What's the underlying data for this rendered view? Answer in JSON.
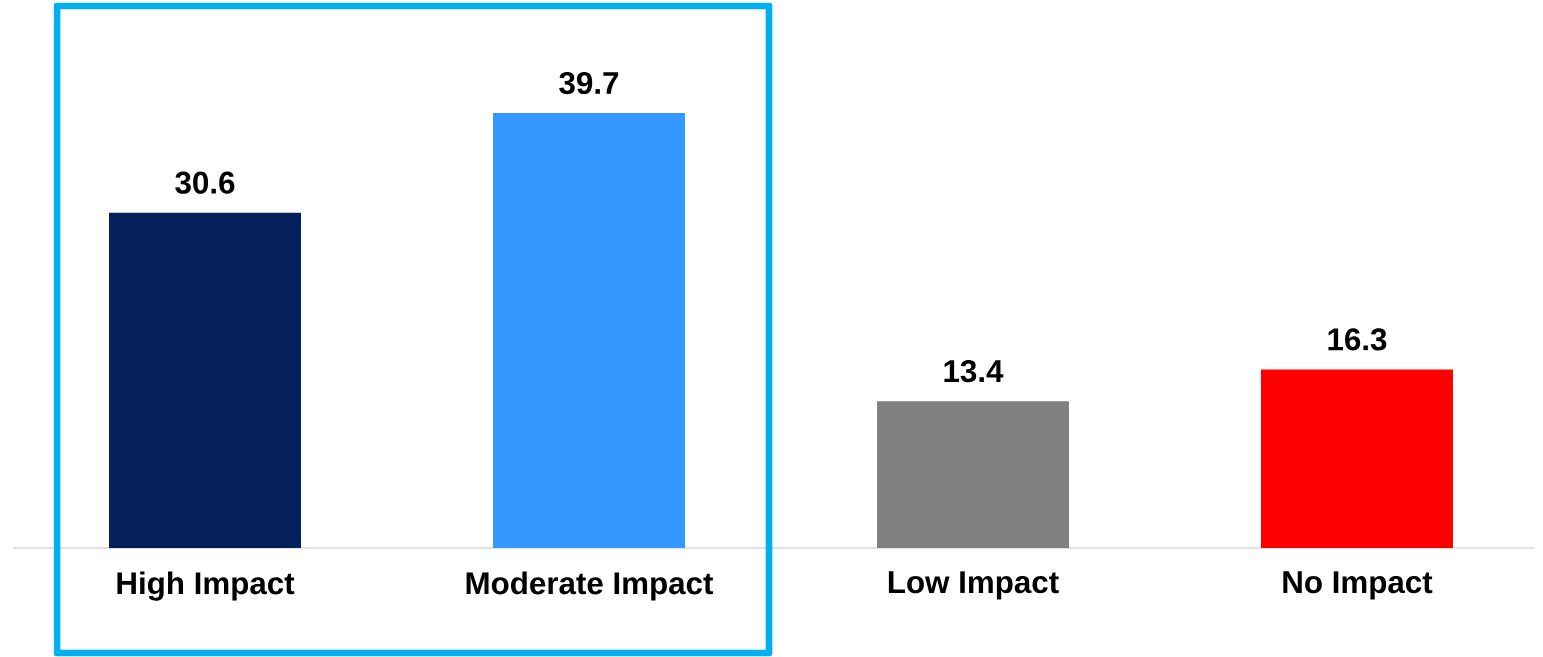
{
  "chart_data": {
    "type": "bar",
    "categories": [
      "High Impact",
      "Moderate Impact",
      "Low Impact",
      "No Impact"
    ],
    "values": [
      30.6,
      39.7,
      13.4,
      16.3
    ],
    "colors": [
      "#03205c",
      "#3399ff",
      "#808080",
      "#ff0000"
    ],
    "data_labels": true
  }
}
